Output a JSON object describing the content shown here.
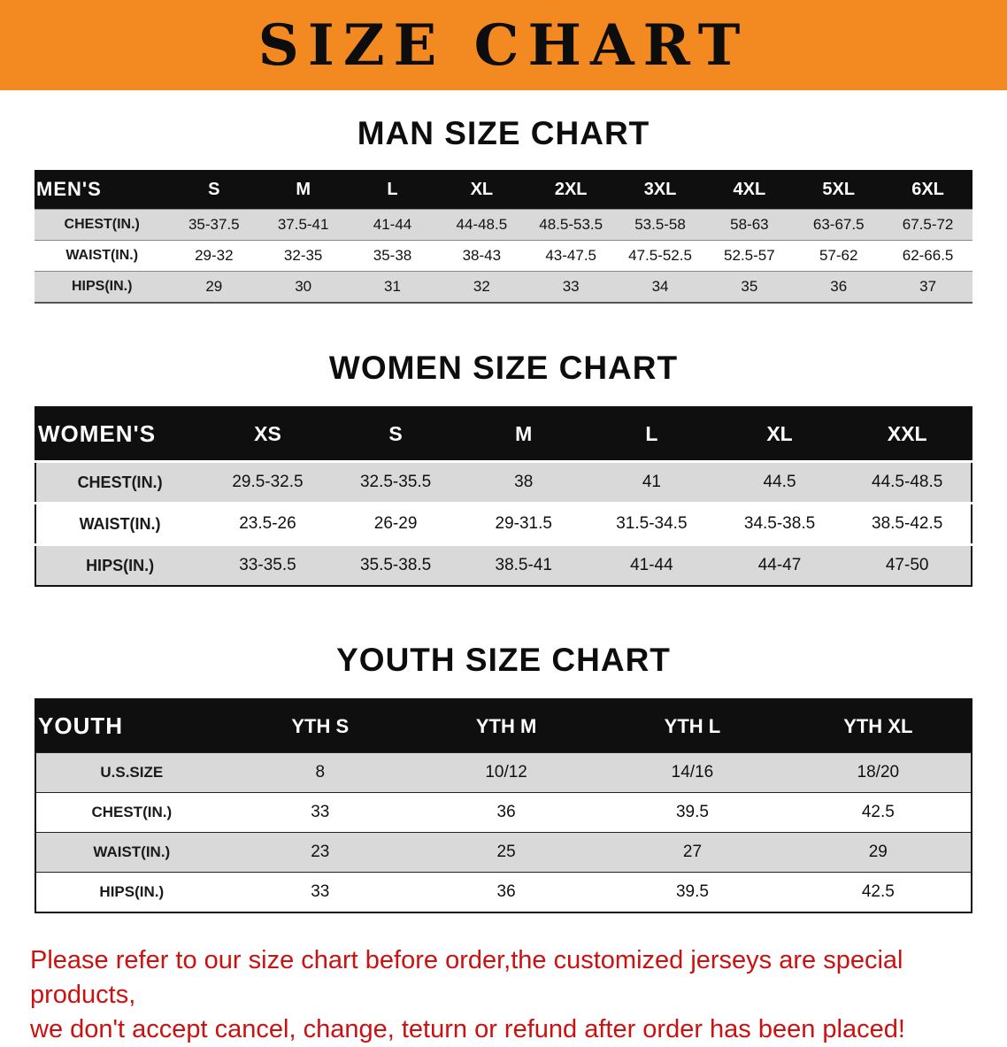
{
  "banner": {
    "title": "SIZE CHART",
    "bg_color": "#f28a21"
  },
  "chart_data": [
    {
      "type": "table",
      "title": "MAN SIZE CHART",
      "corner_label": "MEN'S",
      "columns": [
        "S",
        "M",
        "L",
        "XL",
        "2XL",
        "3XL",
        "4XL",
        "5XL",
        "6XL"
      ],
      "rows": [
        {
          "label": "CHEST(IN.)",
          "values": [
            "35-37.5",
            "37.5-41",
            "41-44",
            "44-48.5",
            "48.5-53.5",
            "53.5-58",
            "58-63",
            "63-67.5",
            "67.5-72"
          ]
        },
        {
          "label": "WAIST(IN.)",
          "values": [
            "29-32",
            "32-35",
            "35-38",
            "38-43",
            "43-47.5",
            "47.5-52.5",
            "52.5-57",
            "57-62",
            "62-66.5"
          ]
        },
        {
          "label": "HIPS(IN.)",
          "values": [
            "29",
            "30",
            "31",
            "32",
            "33",
            "34",
            "35",
            "36",
            "37"
          ]
        }
      ]
    },
    {
      "type": "table",
      "title": "WOMEN SIZE CHART",
      "corner_label": "WOMEN'S",
      "columns": [
        "XS",
        "S",
        "M",
        "L",
        "XL",
        "XXL"
      ],
      "rows": [
        {
          "label": "CHEST(IN.)",
          "values": [
            "29.5-32.5",
            "32.5-35.5",
            "38",
            "41",
            "44.5",
            "44.5-48.5"
          ]
        },
        {
          "label": "WAIST(IN.)",
          "values": [
            "23.5-26",
            "26-29",
            "29-31.5",
            "31.5-34.5",
            "34.5-38.5",
            "38.5-42.5"
          ]
        },
        {
          "label": "HIPS(IN.)",
          "values": [
            "33-35.5",
            "35.5-38.5",
            "38.5-41",
            "41-44",
            "44-47",
            "47-50"
          ]
        }
      ]
    },
    {
      "type": "table",
      "title": "YOUTH SIZE CHART",
      "corner_label": "YOUTH",
      "columns": [
        "YTH S",
        "YTH M",
        "YTH L",
        "YTH XL"
      ],
      "rows": [
        {
          "label": "U.S.SIZE",
          "values": [
            "8",
            "10/12",
            "14/16",
            "18/20"
          ]
        },
        {
          "label": "CHEST(IN.)",
          "values": [
            "33",
            "36",
            "39.5",
            "42.5"
          ]
        },
        {
          "label": "WAIST(IN.)",
          "values": [
            "23",
            "25",
            "27",
            "29"
          ]
        },
        {
          "label": "HIPS(IN.)",
          "values": [
            "33",
            "36",
            "39.5",
            "42.5"
          ]
        }
      ]
    }
  ],
  "footer_note": {
    "line1": "Please refer to our size chart before order,the customized jerseys are special products,",
    "line2": "we don't accept cancel, change, teturn or refund after order has been placed!",
    "color": "#cc1111"
  }
}
